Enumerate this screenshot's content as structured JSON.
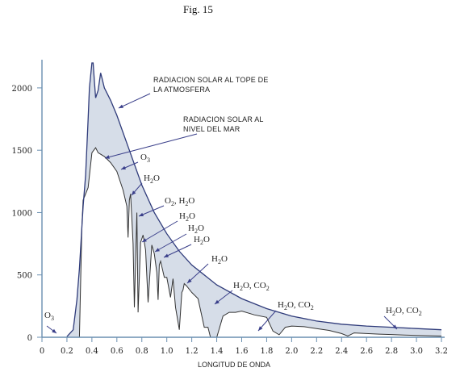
{
  "figure_label": "Fig. 15",
  "chart_data": {
    "type": "area",
    "title": "",
    "xlabel": "LONGITUD DE ONDA",
    "ylabel": "",
    "xlim": [
      0,
      3.2
    ],
    "ylim": [
      0,
      2200
    ],
    "x_ticks": [
      "0",
      "0.2",
      "0.4",
      "0.6",
      "0.8",
      "1.0",
      "1.2",
      "1.4",
      "1.6",
      "1.8",
      "2.0",
      "2.2",
      "2.4",
      "2.6",
      "2.8",
      "3.0",
      "3.2"
    ],
    "y_ticks": [
      "0",
      "500",
      "1000",
      "1500",
      "2000"
    ],
    "grid": false,
    "series": [
      {
        "name": "RADIACION SOLAR AL TOPE DE LA ATMOSFERA",
        "x": [
          0.2,
          0.25,
          0.28,
          0.3,
          0.33,
          0.35,
          0.37,
          0.38,
          0.4,
          0.41,
          0.42,
          0.43,
          0.45,
          0.47,
          0.48,
          0.5,
          0.55,
          0.6,
          0.7,
          0.8,
          0.9,
          1.0,
          1.1,
          1.2,
          1.4,
          1.6,
          1.8,
          2.0,
          2.2,
          2.4,
          2.6,
          2.8,
          3.0,
          3.2
        ],
        "y": [
          5,
          60,
          300,
          550,
          1050,
          1300,
          1750,
          2000,
          2200,
          2200,
          2050,
          1920,
          1980,
          2120,
          2080,
          2000,
          1900,
          1780,
          1500,
          1220,
          1000,
          830,
          690,
          580,
          420,
          310,
          230,
          170,
          130,
          105,
          90,
          80,
          70,
          60
        ]
      },
      {
        "name": "RADIACION SOLAR AL NIVEL DEL MAR",
        "x": [
          0.28,
          0.3,
          0.32,
          0.33,
          0.35,
          0.37,
          0.4,
          0.43,
          0.45,
          0.5,
          0.55,
          0.6,
          0.65,
          0.68,
          0.69,
          0.7,
          0.71,
          0.72,
          0.73,
          0.74,
          0.76,
          0.77,
          0.79,
          0.81,
          0.83,
          0.85,
          0.88,
          0.9,
          0.92,
          0.93,
          0.94,
          0.95,
          0.98,
          1.0,
          1.03,
          1.05,
          1.07,
          1.1,
          1.12,
          1.13,
          1.14,
          1.16,
          1.2,
          1.25,
          1.3,
          1.33,
          1.35,
          1.4,
          1.45,
          1.5,
          1.55,
          1.6,
          1.7,
          1.8,
          1.85,
          1.9,
          1.95,
          2.0,
          2.1,
          2.2,
          2.3,
          2.4,
          2.45,
          2.5,
          2.6,
          2.7,
          2.8,
          2.9,
          3.0,
          3.2
        ],
        "y": [
          0,
          0,
          900,
          1100,
          1150,
          1200,
          1480,
          1520,
          1480,
          1450,
          1400,
          1330,
          1180,
          1050,
          800,
          1100,
          1150,
          950,
          750,
          240,
          1000,
          200,
          760,
          820,
          700,
          280,
          740,
          670,
          520,
          300,
          580,
          610,
          480,
          480,
          320,
          470,
          240,
          60,
          360,
          380,
          430,
          410,
          360,
          310,
          80,
          80,
          0,
          0,
          170,
          200,
          200,
          210,
          180,
          160,
          50,
          20,
          80,
          90,
          85,
          70,
          55,
          30,
          10,
          35,
          30,
          25,
          22,
          18,
          15,
          10
        ]
      }
    ],
    "annotations": {
      "top_label": "RADIACION SOLAR AL TOPE DE LA ATMOSFERA",
      "top_line1": "RADIACION SOLAR AL TOPE DE",
      "top_line2": "LA ATMOSFERA",
      "sea_line1": "RADIACION SOLAR AL",
      "sea_line2": "NIVEL DEL MAR",
      "absorption_bands": [
        {
          "label": "O",
          "sub": "3"
        },
        {
          "label": "O",
          "sub": "3"
        },
        {
          "label": "H",
          "sub": "2",
          "suffix": "O"
        },
        {
          "label": "O",
          "sub": "2",
          "suffix": ", H",
          "sub2": "2",
          "suffix2": "O"
        },
        {
          "label": "H",
          "sub": "2",
          "suffix": "O"
        },
        {
          "label": "H",
          "sub": "2",
          "suffix": "O"
        },
        {
          "label": "H",
          "sub": "2",
          "suffix": "O"
        },
        {
          "label": "H",
          "sub": "2",
          "suffix": "O"
        },
        {
          "label": "H",
          "sub": "2",
          "suffix": "O, CO",
          "sub2": "2"
        },
        {
          "label": "H",
          "sub": "2",
          "suffix": "O, CO",
          "sub2": "2"
        },
        {
          "label": "H",
          "sub": "2",
          "suffix": "O, CO",
          "sub2": "2"
        }
      ]
    },
    "colors": {
      "axis": "#6a8fb0",
      "top_curve": "#2f3b7a",
      "sea_curve": "#333333",
      "shade": "#d6dde8",
      "arrow": "#3a3f8a"
    }
  }
}
